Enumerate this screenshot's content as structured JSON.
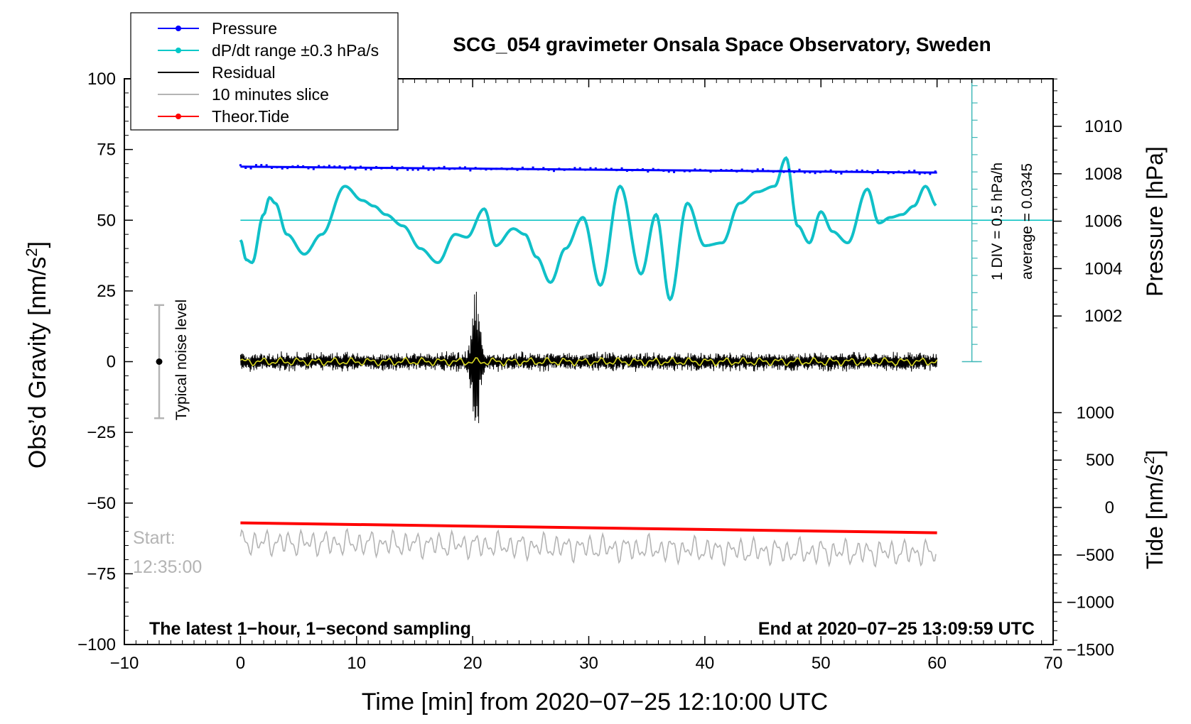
{
  "chart_data": {
    "type": "line",
    "title": "SCG_054 gravimeter Onsala Space Observatory, Sweden",
    "xlabel": "Time [min] from 2020−07−25 12:10:00 UTC",
    "ylabel_left": "Obs’d Gravity [nm/s²]",
    "ylabel_left_main": "Obs’d Gravity [nm/s",
    "ylabel_left_sup": "2",
    "ylabel_left_end": "]",
    "ylabel_right_pressure": "Pressure [hPa]",
    "ylabel_right_tide": "Tide [nm/s²]",
    "ylabel_right_tide_main": "Tide [nm/s",
    "ylabel_right_tide_sup": "2",
    "ylabel_right_tide_end": "]",
    "xlim": [
      -10,
      70
    ],
    "ylim": [
      -100,
      100
    ],
    "x_ticks": [
      "−10",
      "0",
      "10",
      "20",
      "30",
      "40",
      "50",
      "60",
      "70"
    ],
    "y_ticks_left": [
      "100",
      "75",
      "50",
      "25",
      "0",
      "−25",
      "−50",
      "−75",
      "−100"
    ],
    "pressure_ticks": [
      "1010",
      "1008",
      "1006",
      "1004",
      "1002"
    ],
    "tide_ticks": [
      "1000",
      "500",
      "0",
      "−500",
      "−1000",
      "−1500"
    ],
    "legend": {
      "position": "top-left",
      "entries": [
        {
          "label": "Pressure",
          "color": "#0000ff",
          "marker": true
        },
        {
          "label": "dP/dt range ±0.3 hPa/s",
          "color": "#00c8c8",
          "marker": true
        },
        {
          "label": "Residual",
          "color": "#000000",
          "marker": false
        },
        {
          "label": "10 minutes slice",
          "color": "#b4b4b4",
          "marker": false
        },
        {
          "label": "Theor.Tide",
          "color": "#ff0000",
          "marker": true
        }
      ]
    },
    "annotations": {
      "noise_label": "Typical noise level",
      "scale_div": "1 DIV = 0.5 hPa/h",
      "scale_avg": "average = 0.0345",
      "start_label": "Start:",
      "start_time": "12:35:00",
      "footer_left": "The latest 1−hour, 1−second sampling",
      "footer_right": "End at 2020−07−25 13:09:59 UTC"
    },
    "series": [
      {
        "name": "Pressure",
        "axis": "pressure_hPa",
        "x": [
          0,
          60
        ],
        "values": [
          1008.3,
          1008.05
        ]
      },
      {
        "name": "dP/dt range",
        "axis": "gravity_plot_units",
        "x": [
          0,
          0.5,
          1,
          2,
          2.5,
          3,
          4,
          5.5,
          7,
          9,
          10.5,
          11.5,
          12.5,
          14,
          15.5,
          17,
          18.5,
          19.5,
          21,
          22,
          23.5,
          24.5,
          25.5,
          26.7,
          28,
          29.5,
          31,
          32.7,
          34.5,
          35.8,
          37,
          38.5,
          40,
          41.5,
          43,
          44.5,
          46,
          47,
          48,
          49,
          50,
          51,
          52.3,
          54,
          55,
          56,
          57,
          58,
          59,
          60
        ],
        "values": [
          43,
          36,
          35,
          52,
          58,
          56,
          45,
          38,
          45,
          62,
          57,
          55,
          52,
          48,
          40,
          35,
          45,
          44,
          54,
          41,
          47,
          45,
          37,
          28,
          40,
          51,
          27,
          62,
          31,
          52,
          22,
          56,
          41,
          42,
          56,
          60,
          62,
          72,
          48,
          42,
          53,
          46,
          42,
          61,
          49,
          51,
          52,
          55,
          62,
          55
        ]
      },
      {
        "name": "Theor.Tide",
        "axis": "gravity_plot_units",
        "x": [
          0,
          60
        ],
        "values": [
          -57,
          -60.5
        ]
      },
      {
        "name": "Residual",
        "axis": "gravity_plot_units",
        "burst_peak_min": 20.3,
        "amplitude": 27
      }
    ],
    "dpdt_baseline": 50,
    "noise_bar": {
      "x": -7,
      "ymin": -20,
      "ymax": 20,
      "center": 0
    }
  }
}
